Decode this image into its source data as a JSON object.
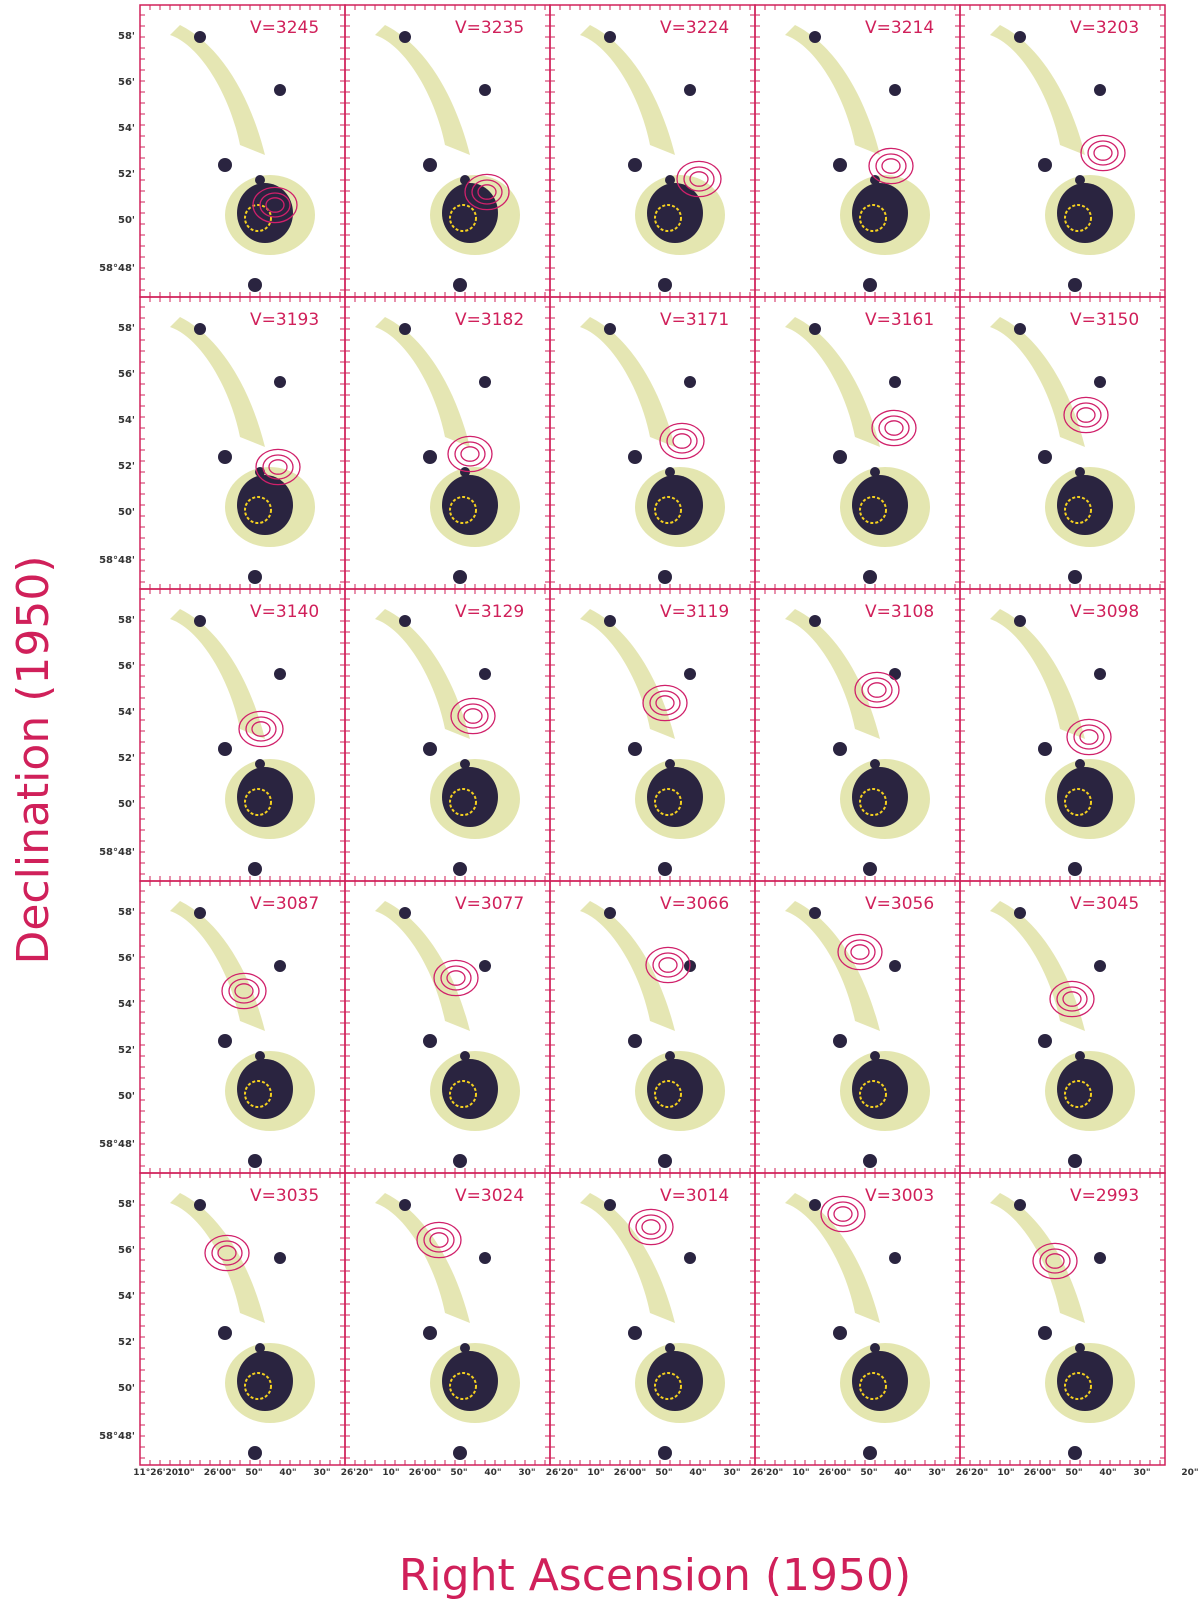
{
  "figure": {
    "y_label": "Declination (1950)",
    "x_label": "Right Ascension (1950)",
    "panels": [
      "V=3245",
      "V=3235",
      "V=3224",
      "V=3214",
      "V=3203",
      "V=3193",
      "V=3182",
      "V=3171",
      "V=3161",
      "V=3150",
      "V=3140",
      "V=3129",
      "V=3119",
      "V=3108",
      "V=3098",
      "V=3087",
      "V=3077",
      "V=3066",
      "V=3056",
      "V=3045",
      "V=3035",
      "V=3024",
      "V=3014",
      "V=3003",
      "V=2993"
    ],
    "y_tick_labels": [
      "58'",
      "56'",
      "54'",
      "52'",
      "50'",
      "58°48'"
    ],
    "x_tick_labels_first": [
      "11°26'20\"",
      "10\"",
      "26'00\"",
      "50\"",
      "40\"",
      "30\""
    ],
    "x_tick_labels_rest": [
      "26'20\"",
      "10\"",
      "26'00\"",
      "50\"",
      "40\"",
      "30\""
    ],
    "x_tick_label_last": "20\""
  }
}
